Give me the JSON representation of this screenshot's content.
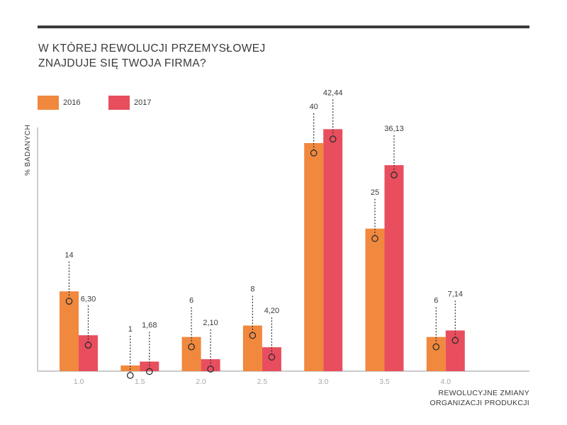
{
  "chart_data": {
    "type": "bar",
    "title_lines": [
      "W KTÓREJ REWOLUCJI PRZEMYSŁOWEJ",
      "ZNAJDUJE SIĘ TWOJA FIRMA?"
    ],
    "xlabel_lines": [
      "REWOLUCYJNE ZMIANY",
      "ORGANIZACJI PRODUKCJI"
    ],
    "ylabel": "% BADANYCH",
    "categories": [
      "1.0",
      "1.5",
      "2.0",
      "2.5",
      "3.0",
      "3.5",
      "4.0"
    ],
    "series": [
      {
        "name": "2016",
        "color": "#f0883e",
        "values": [
          14,
          1,
          6,
          8,
          40,
          25,
          6
        ],
        "value_labels": [
          "14",
          "1",
          "6",
          "8",
          "40",
          "25",
          "6"
        ]
      },
      {
        "name": "2017",
        "color": "#e84e5e",
        "values": [
          6.3,
          1.68,
          2.1,
          4.2,
          42.44,
          36.13,
          7.14
        ],
        "value_labels": [
          "6,30",
          "1,68",
          "2,10",
          "4,20",
          "42,44",
          "36,13",
          "7,14"
        ]
      }
    ],
    "ylim": [
      0,
      50
    ],
    "grid": false,
    "legend_position": "top-left",
    "axis_color": "#9a9a9a",
    "tick_label_color": "#a8a8a8"
  }
}
